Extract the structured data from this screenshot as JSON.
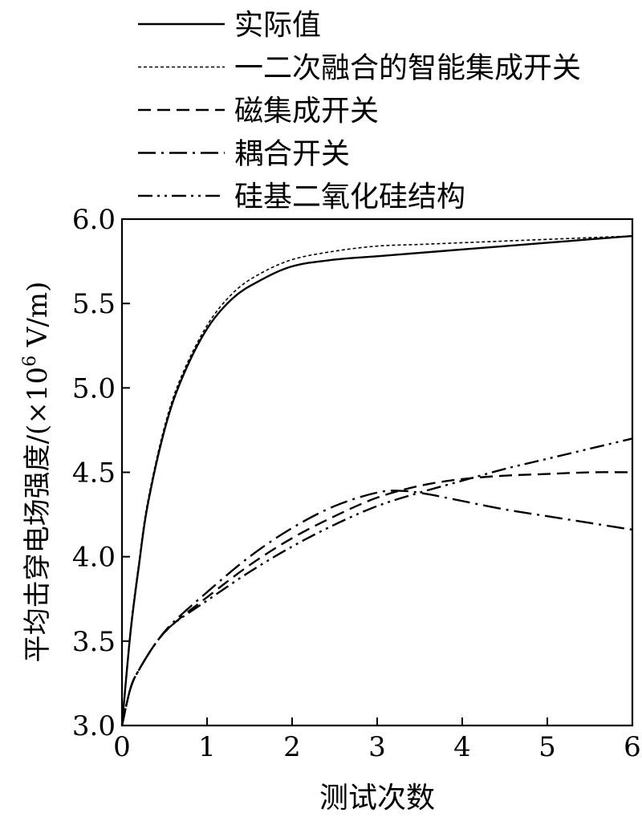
{
  "chart_data": {
    "type": "line",
    "xlabel": "测试次数",
    "ylabel_main": "平均击穿电场强度/(×10",
    "ylabel_exp": "6",
    "ylabel_tail": " V/m)",
    "xlim": [
      0,
      6
    ],
    "ylim": [
      3.0,
      6.0
    ],
    "x_ticks": [
      "0",
      "1",
      "2",
      "3",
      "4",
      "5",
      "6"
    ],
    "y_ticks": [
      "3.0",
      "3.5",
      "4.0",
      "4.5",
      "5.0",
      "5.5",
      "6.0"
    ],
    "grid": false,
    "legend_position": "top",
    "series": [
      {
        "name": "实际值",
        "dash": "solid",
        "color": "#000000",
        "x": [
          0,
          0.1,
          0.2,
          0.3,
          0.5,
          0.7,
          1.0,
          1.3,
          1.6,
          2.0,
          2.5,
          3.0,
          3.5,
          4.0,
          4.5,
          5.0,
          5.5,
          6.0
        ],
        "y": [
          3.0,
          3.55,
          3.95,
          4.3,
          4.75,
          5.05,
          5.35,
          5.53,
          5.63,
          5.72,
          5.76,
          5.78,
          5.8,
          5.82,
          5.84,
          5.86,
          5.88,
          5.9
        ]
      },
      {
        "name": "一二次融合的智能集成开关",
        "dash": "short-dash",
        "color": "#000000",
        "x": [
          0,
          0.1,
          0.2,
          0.3,
          0.5,
          0.7,
          1.0,
          1.3,
          1.6,
          2.0,
          2.5,
          3.0,
          3.5,
          4.0,
          4.5,
          5.0,
          5.5,
          6.0
        ],
        "y": [
          3.0,
          3.57,
          3.97,
          4.32,
          4.77,
          5.07,
          5.37,
          5.56,
          5.67,
          5.76,
          5.81,
          5.84,
          5.85,
          5.86,
          5.87,
          5.88,
          5.89,
          5.9
        ]
      },
      {
        "name": "磁集成开关",
        "dash": "long-dash",
        "color": "#000000",
        "x": [
          0,
          0.1,
          0.2,
          0.4,
          0.6,
          1.0,
          1.5,
          2.0,
          2.5,
          3.0,
          3.5,
          4.0,
          4.5,
          5.0,
          5.5,
          6.0
        ],
        "y": [
          3.0,
          3.22,
          3.33,
          3.49,
          3.6,
          3.76,
          3.95,
          4.11,
          4.24,
          4.35,
          4.42,
          4.46,
          4.48,
          4.49,
          4.5,
          4.5
        ]
      },
      {
        "name": "耦合开关",
        "dash": "dash-dot",
        "color": "#000000",
        "x": [
          0,
          0.1,
          0.2,
          0.4,
          0.6,
          1.0,
          1.5,
          2.0,
          2.5,
          3.0,
          3.3,
          3.6,
          4.0,
          4.5,
          5.0,
          5.5,
          6.0
        ],
        "y": [
          3.0,
          3.22,
          3.33,
          3.49,
          3.61,
          3.79,
          4.0,
          4.17,
          4.3,
          4.38,
          4.39,
          4.37,
          4.33,
          4.28,
          4.24,
          4.2,
          4.16
        ]
      },
      {
        "name": "硅基二氧化硅结构",
        "dash": "dash-dot-dot",
        "color": "#000000",
        "x": [
          0,
          0.1,
          0.2,
          0.4,
          0.6,
          1.0,
          1.5,
          2.0,
          2.5,
          3.0,
          3.5,
          4.0,
          4.5,
          5.0,
          5.5,
          6.0
        ],
        "y": [
          3.0,
          3.22,
          3.33,
          3.49,
          3.6,
          3.74,
          3.91,
          4.06,
          4.19,
          4.3,
          4.38,
          4.45,
          4.52,
          4.58,
          4.64,
          4.7
        ]
      }
    ]
  }
}
